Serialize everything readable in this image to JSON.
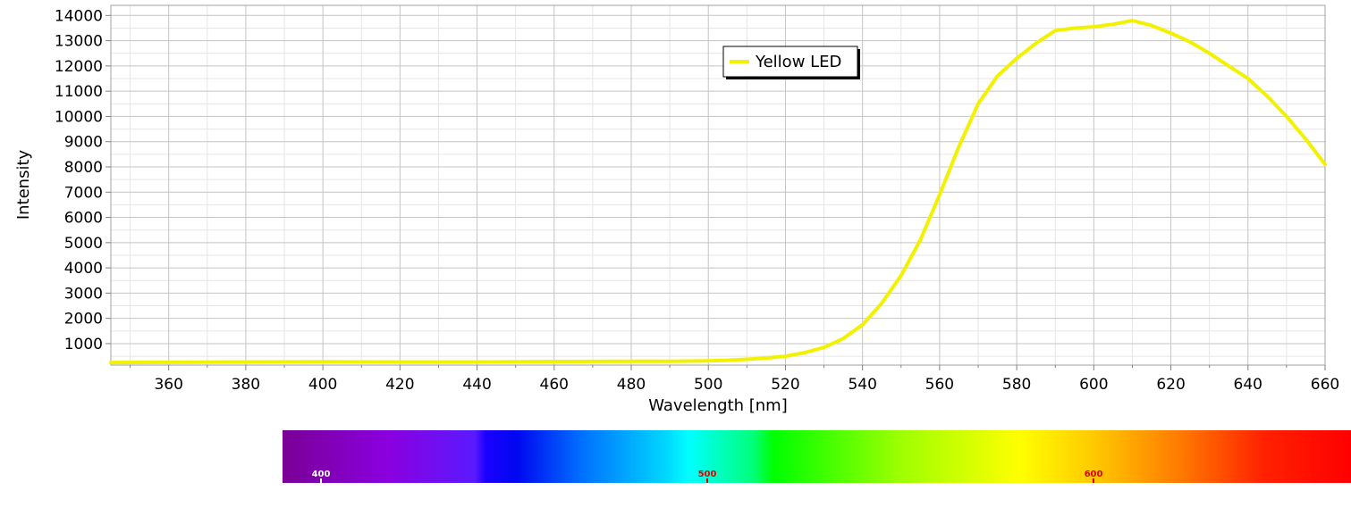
{
  "chart_data": {
    "type": "line",
    "xlabel": "Wavelength [nm]",
    "ylabel": "Intensity",
    "xlim": [
      345,
      660
    ],
    "ylim": [
      150,
      14400
    ],
    "x_ticks": [
      360,
      380,
      400,
      420,
      440,
      460,
      480,
      500,
      520,
      540,
      560,
      580,
      600,
      620,
      640,
      660
    ],
    "y_ticks": [
      1000,
      2000,
      3000,
      4000,
      5000,
      6000,
      7000,
      8000,
      9000,
      10000,
      11000,
      12000,
      13000,
      14000
    ],
    "grid": true,
    "legend": {
      "placement": "top-center",
      "entries": [
        "Yellow LED"
      ]
    },
    "series": [
      {
        "name": "Yellow LED",
        "color": "#f2f200",
        "x": [
          345,
          360,
          380,
          400,
          420,
          440,
          460,
          480,
          490,
          500,
          505,
          510,
          515,
          520,
          525,
          530,
          535,
          540,
          545,
          550,
          555,
          560,
          565,
          570,
          575,
          580,
          585,
          590,
          595,
          600,
          605,
          610,
          615,
          620,
          625,
          630,
          635,
          640,
          645,
          650,
          655,
          660
        ],
        "y": [
          250,
          260,
          270,
          280,
          270,
          270,
          290,
          300,
          300,
          320,
          340,
          380,
          430,
          500,
          640,
          850,
          1200,
          1750,
          2600,
          3700,
          5100,
          6900,
          8800,
          10500,
          11600,
          12300,
          12900,
          13400,
          13500,
          13550,
          13650,
          13800,
          13600,
          13300,
          12950,
          12500,
          12000,
          11500,
          10800,
          10000,
          9100,
          8100
        ]
      }
    ]
  },
  "spectrum_bar": {
    "labels": [
      {
        "wavelength": 400,
        "text": "400",
        "color": "#ffffff"
      },
      {
        "wavelength": 500,
        "text": "500",
        "color": "#e00000"
      },
      {
        "wavelength": 600,
        "text": "600",
        "color": "#e00000"
      }
    ]
  }
}
